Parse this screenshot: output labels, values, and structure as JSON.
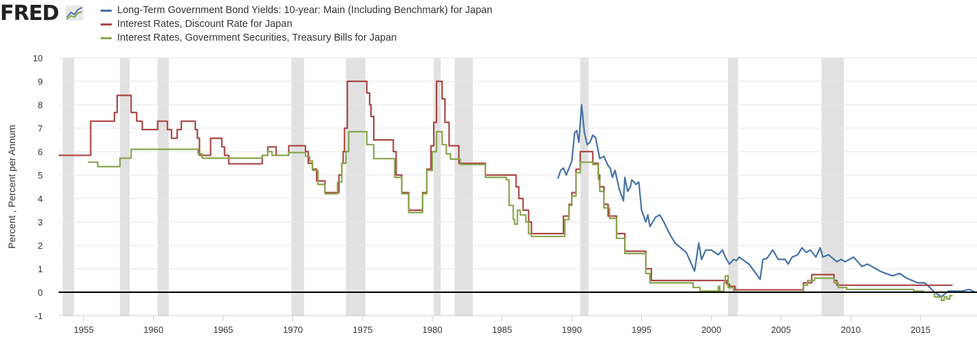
{
  "logo": {
    "text": "FRED"
  },
  "colors": {
    "blue": "#4572a7",
    "red": "#aa4643",
    "green": "#89a54e",
    "recession": "#e1e1e1",
    "grid": "#e6e6e6"
  },
  "chart_data": {
    "type": "line",
    "title": "",
    "ylabel": "Percent , Percent per Annum",
    "xlabel": "",
    "xlim": [
      1953.2,
      2019.05
    ],
    "ylim": [
      -1,
      10
    ],
    "yticks": [
      -1,
      0,
      1,
      2,
      3,
      4,
      5,
      6,
      7,
      8,
      9,
      10
    ],
    "xticks": [
      1955,
      1960,
      1965,
      1970,
      1975,
      1980,
      1985,
      1990,
      1995,
      2000,
      2005,
      2010,
      2015
    ],
    "grid": true,
    "legend_position": "top-left",
    "recessions": [
      [
        1953.5,
        1954.3
      ],
      [
        1957.6,
        1958.3
      ],
      [
        1960.3,
        1961.1
      ],
      [
        1969.9,
        1970.8
      ],
      [
        1973.8,
        1975.2
      ],
      [
        1980.1,
        1980.6
      ],
      [
        1981.6,
        1982.9
      ],
      [
        1990.6,
        1991.2
      ],
      [
        2001.2,
        2001.9
      ],
      [
        2007.9,
        2009.5
      ]
    ],
    "series": [
      {
        "name": "Long-Term Government Bond Yields: 10-year: Main (Including Benchmark) for Japan",
        "color": "#4572a7",
        "step": false,
        "points": [
          [
            1989.0,
            4.85
          ],
          [
            1989.2,
            5.2
          ],
          [
            1989.4,
            5.3
          ],
          [
            1989.6,
            5.0
          ],
          [
            1989.8,
            5.3
          ],
          [
            1990.0,
            5.6
          ],
          [
            1990.2,
            6.8
          ],
          [
            1990.35,
            6.9
          ],
          [
            1990.5,
            6.4
          ],
          [
            1990.7,
            8.0
          ],
          [
            1990.9,
            6.8
          ],
          [
            1991.1,
            6.3
          ],
          [
            1991.3,
            6.4
          ],
          [
            1991.5,
            6.7
          ],
          [
            1991.7,
            6.6
          ],
          [
            1991.9,
            6.0
          ],
          [
            1992.0,
            5.7
          ],
          [
            1992.3,
            5.8
          ],
          [
            1992.6,
            5.4
          ],
          [
            1992.75,
            5.3
          ],
          [
            1992.9,
            4.9
          ],
          [
            1993.1,
            5.2
          ],
          [
            1993.4,
            4.4
          ],
          [
            1993.7,
            3.9
          ],
          [
            1993.8,
            4.9
          ],
          [
            1994.0,
            4.3
          ],
          [
            1994.2,
            4.5
          ],
          [
            1994.3,
            4.8
          ],
          [
            1994.6,
            4.6
          ],
          [
            1994.8,
            4.7
          ],
          [
            1995.0,
            3.5
          ],
          [
            1995.3,
            3.0
          ],
          [
            1995.45,
            3.3
          ],
          [
            1995.6,
            2.8
          ],
          [
            1995.8,
            3.0
          ],
          [
            1996.0,
            3.2
          ],
          [
            1996.3,
            3.3
          ],
          [
            1996.6,
            3.0
          ],
          [
            1997.0,
            2.5
          ],
          [
            1997.4,
            2.1
          ],
          [
            1997.8,
            1.9
          ],
          [
            1998.2,
            1.7
          ],
          [
            1998.8,
            0.9
          ],
          [
            1999.1,
            2.1
          ],
          [
            1999.3,
            1.4
          ],
          [
            1999.6,
            1.8
          ],
          [
            2000.0,
            1.8
          ],
          [
            2000.5,
            1.6
          ],
          [
            2000.8,
            1.8
          ],
          [
            2001.0,
            1.5
          ],
          [
            2001.3,
            1.2
          ],
          [
            2001.6,
            1.4
          ],
          [
            2001.8,
            1.35
          ],
          [
            2002.0,
            1.5
          ],
          [
            2002.7,
            1.2
          ],
          [
            2003.2,
            0.8
          ],
          [
            2003.5,
            0.55
          ],
          [
            2003.7,
            1.4
          ],
          [
            2004.0,
            1.45
          ],
          [
            2004.4,
            1.8
          ],
          [
            2004.8,
            1.4
          ],
          [
            2005.3,
            1.4
          ],
          [
            2005.5,
            1.2
          ],
          [
            2005.8,
            1.5
          ],
          [
            2006.2,
            1.6
          ],
          [
            2006.5,
            1.9
          ],
          [
            2006.8,
            1.7
          ],
          [
            2007.1,
            1.8
          ],
          [
            2007.5,
            1.5
          ],
          [
            2007.8,
            1.9
          ],
          [
            2008.0,
            1.5
          ],
          [
            2008.4,
            1.6
          ],
          [
            2008.8,
            1.4
          ],
          [
            2009.0,
            1.3
          ],
          [
            2009.3,
            1.4
          ],
          [
            2009.6,
            1.3
          ],
          [
            2010.2,
            1.5
          ],
          [
            2010.8,
            1.1
          ],
          [
            2011.2,
            1.2
          ],
          [
            2011.8,
            1.0
          ],
          [
            2012.1,
            0.9
          ],
          [
            2012.5,
            0.8
          ],
          [
            2013.0,
            0.7
          ],
          [
            2013.5,
            0.8
          ],
          [
            2014.0,
            0.6
          ],
          [
            2014.8,
            0.4
          ],
          [
            2015.3,
            0.4
          ],
          [
            2015.5,
            0.3
          ],
          [
            2016.0,
            0.0
          ],
          [
            2016.5,
            -0.2
          ],
          [
            2016.8,
            -0.05
          ],
          [
            2017.0,
            0.05
          ],
          [
            2018.0,
            0.05
          ],
          [
            2018.5,
            0.12
          ],
          [
            2018.9,
            0.0
          ]
        ]
      },
      {
        "name": "Interest Rates, Discount Rate for Japan",
        "color": "#aa4643",
        "step": true,
        "points": [
          [
            1953.2,
            5.84
          ],
          [
            1955.5,
            7.3
          ],
          [
            1957.2,
            7.67
          ],
          [
            1957.4,
            8.4
          ],
          [
            1958.4,
            7.67
          ],
          [
            1958.8,
            7.3
          ],
          [
            1959.2,
            6.94
          ],
          [
            1960.3,
            7.3
          ],
          [
            1961.0,
            6.94
          ],
          [
            1961.3,
            6.57
          ],
          [
            1961.7,
            6.94
          ],
          [
            1962.0,
            7.3
          ],
          [
            1963.0,
            6.94
          ],
          [
            1963.15,
            6.57
          ],
          [
            1963.3,
            5.84
          ],
          [
            1964.1,
            6.57
          ],
          [
            1964.9,
            6.2
          ],
          [
            1965.1,
            5.84
          ],
          [
            1965.4,
            5.48
          ],
          [
            1967.8,
            5.84
          ],
          [
            1968.2,
            6.2
          ],
          [
            1968.8,
            5.84
          ],
          [
            1969.7,
            6.25
          ],
          [
            1970.9,
            6.0
          ],
          [
            1971.1,
            5.5
          ],
          [
            1971.4,
            5.25
          ],
          [
            1971.7,
            4.75
          ],
          [
            1972.3,
            4.25
          ],
          [
            1973.3,
            5.0
          ],
          [
            1973.5,
            5.5
          ],
          [
            1973.6,
            6.0
          ],
          [
            1973.7,
            7.0
          ],
          [
            1973.9,
            9.0
          ],
          [
            1975.3,
            8.5
          ],
          [
            1975.5,
            8.0
          ],
          [
            1975.6,
            7.5
          ],
          [
            1975.8,
            6.5
          ],
          [
            1977.2,
            6.0
          ],
          [
            1977.4,
            5.0
          ],
          [
            1977.8,
            4.25
          ],
          [
            1978.3,
            3.5
          ],
          [
            1979.3,
            4.25
          ],
          [
            1979.6,
            5.25
          ],
          [
            1979.9,
            6.25
          ],
          [
            1980.1,
            7.25
          ],
          [
            1980.3,
            9.0
          ],
          [
            1980.7,
            8.25
          ],
          [
            1980.9,
            7.25
          ],
          [
            1981.2,
            6.25
          ],
          [
            1981.9,
            5.5
          ],
          [
            1983.8,
            5.0
          ],
          [
            1986.0,
            4.5
          ],
          [
            1986.2,
            4.0
          ],
          [
            1986.5,
            3.5
          ],
          [
            1986.9,
            3.0
          ],
          [
            1987.1,
            2.5
          ],
          [
            1989.4,
            3.25
          ],
          [
            1989.8,
            3.75
          ],
          [
            1990.0,
            4.25
          ],
          [
            1990.3,
            5.25
          ],
          [
            1990.6,
            6.0
          ],
          [
            1991.5,
            5.5
          ],
          [
            1991.9,
            5.0
          ],
          [
            1992.0,
            4.5
          ],
          [
            1992.3,
            3.75
          ],
          [
            1992.6,
            3.25
          ],
          [
            1993.2,
            2.5
          ],
          [
            1993.8,
            1.75
          ],
          [
            1995.3,
            1.0
          ],
          [
            1995.7,
            0.5
          ],
          [
            2001.1,
            0.35
          ],
          [
            2001.3,
            0.25
          ],
          [
            2001.7,
            0.1
          ],
          [
            2006.6,
            0.4
          ],
          [
            2007.2,
            0.75
          ],
          [
            2008.8,
            0.5
          ],
          [
            2009.0,
            0.3
          ],
          [
            2017.3,
            0.3
          ]
        ]
      },
      {
        "name": "Interest Rates, Government Securities, Treasury Bills for Japan",
        "color": "#89a54e",
        "step": true,
        "points": [
          [
            1955.3,
            5.55
          ],
          [
            1956.0,
            5.36
          ],
          [
            1957.6,
            5.72
          ],
          [
            1958.4,
            6.1
          ],
          [
            1963.2,
            5.9
          ],
          [
            1963.5,
            5.72
          ],
          [
            1967.8,
            5.84
          ],
          [
            1968.2,
            6.0
          ],
          [
            1968.5,
            5.84
          ],
          [
            1969.7,
            5.96
          ],
          [
            1970.9,
            5.8
          ],
          [
            1971.2,
            5.6
          ],
          [
            1971.4,
            5.2
          ],
          [
            1971.8,
            4.6
          ],
          [
            1972.3,
            4.2
          ],
          [
            1973.2,
            4.7
          ],
          [
            1973.5,
            5.5
          ],
          [
            1973.8,
            6.0
          ],
          [
            1974.0,
            6.85
          ],
          [
            1975.3,
            6.3
          ],
          [
            1975.8,
            5.7
          ],
          [
            1977.3,
            4.9
          ],
          [
            1977.8,
            4.2
          ],
          [
            1978.3,
            3.4
          ],
          [
            1979.3,
            4.2
          ],
          [
            1979.6,
            5.2
          ],
          [
            1980.0,
            6.0
          ],
          [
            1980.3,
            6.85
          ],
          [
            1980.7,
            6.3
          ],
          [
            1981.0,
            5.9
          ],
          [
            1981.3,
            5.68
          ],
          [
            1982.0,
            5.45
          ],
          [
            1983.8,
            4.9
          ],
          [
            1985.3,
            4.8
          ],
          [
            1985.5,
            3.7
          ],
          [
            1985.8,
            3.1
          ],
          [
            1985.9,
            2.9
          ],
          [
            1986.1,
            3.5
          ],
          [
            1986.3,
            3.3
          ],
          [
            1986.7,
            3.0
          ],
          [
            1986.9,
            2.5
          ],
          [
            1987.1,
            2.38
          ],
          [
            1989.5,
            3.1
          ],
          [
            1989.8,
            3.7
          ],
          [
            1990.0,
            4.1
          ],
          [
            1990.3,
            5.1
          ],
          [
            1990.6,
            5.55
          ],
          [
            1991.5,
            5.45
          ],
          [
            1991.9,
            4.8
          ],
          [
            1992.0,
            4.3
          ],
          [
            1992.3,
            3.6
          ],
          [
            1992.7,
            3.15
          ],
          [
            1993.2,
            2.3
          ],
          [
            1993.8,
            1.65
          ],
          [
            1995.3,
            0.8
          ],
          [
            1995.6,
            0.4
          ],
          [
            1998.7,
            0.2
          ],
          [
            1999.2,
            0.05
          ],
          [
            2000.5,
            0.25
          ],
          [
            2000.6,
            0.05
          ],
          [
            2000.9,
            0.4
          ],
          [
            2001.0,
            0.7
          ],
          [
            2001.2,
            0.2
          ],
          [
            2001.6,
            0.0
          ],
          [
            2006.6,
            0.3
          ],
          [
            2006.9,
            0.5
          ],
          [
            2007.4,
            0.6
          ],
          [
            2008.8,
            0.4
          ],
          [
            2009.1,
            0.2
          ],
          [
            2009.7,
            0.12
          ],
          [
            2014.5,
            0.05
          ],
          [
            2015.2,
            0.0
          ],
          [
            2016.0,
            -0.2
          ],
          [
            2016.5,
            -0.35
          ],
          [
            2016.7,
            -0.2
          ],
          [
            2016.9,
            -0.3
          ],
          [
            2017.1,
            -0.15
          ],
          [
            2017.3,
            -0.15
          ]
        ]
      }
    ]
  }
}
